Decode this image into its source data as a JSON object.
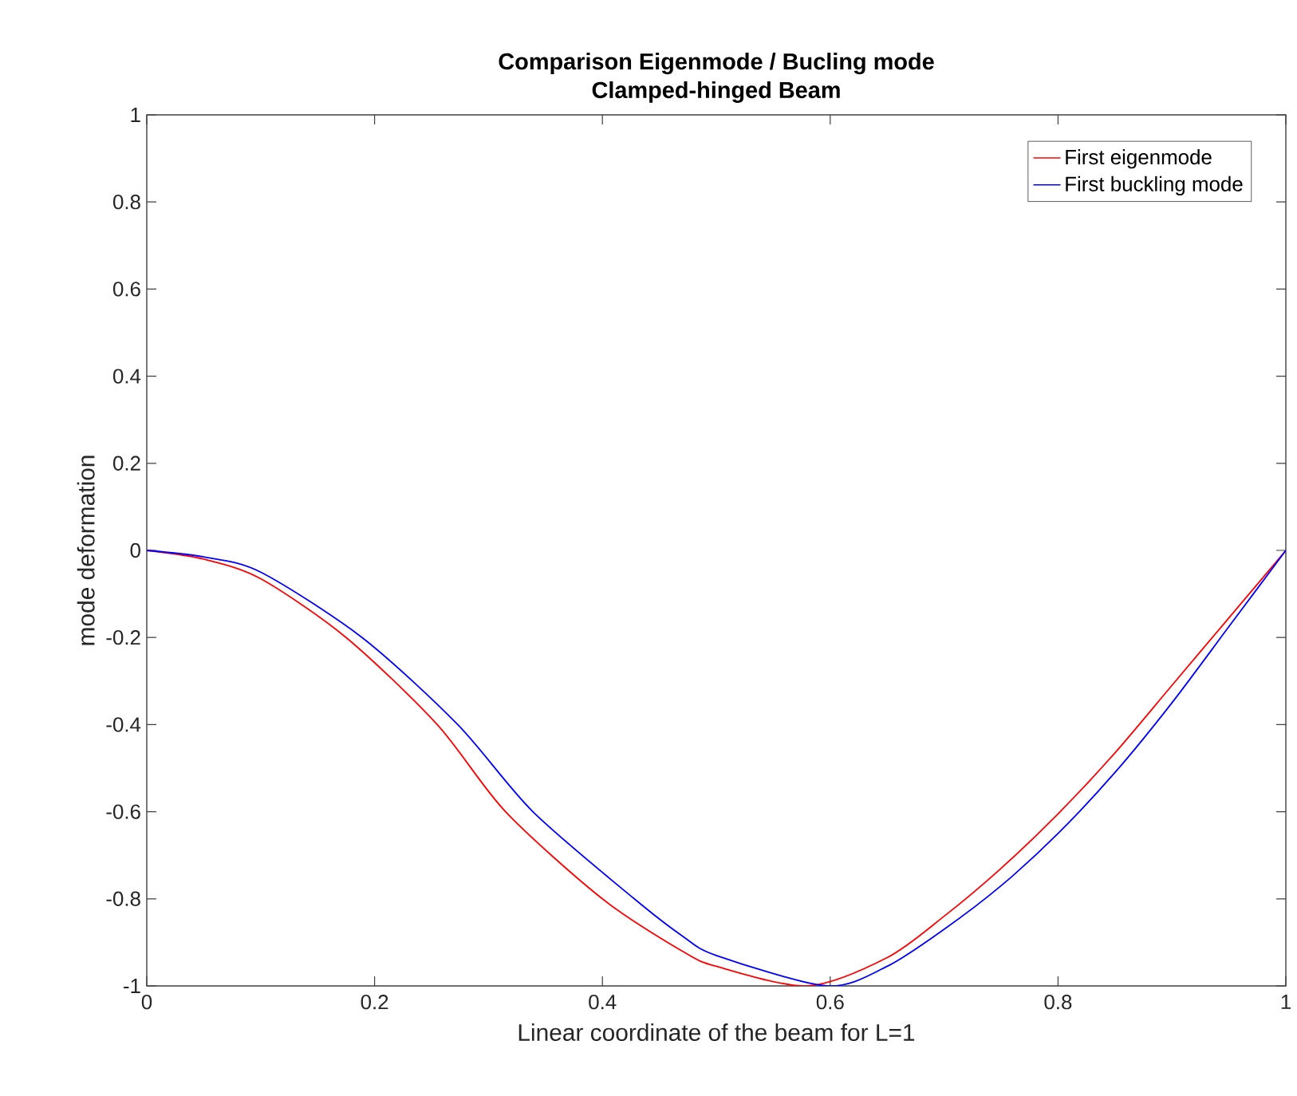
{
  "chart_data": {
    "type": "line",
    "title": "Comparison Eigenmode / Bucling mode",
    "subtitle": "Clamped-hinged Beam",
    "xlabel": "Linear coordinate of the beam for L=1",
    "ylabel": "mode deformation",
    "xlim": [
      0,
      1
    ],
    "ylim": [
      -1,
      1
    ],
    "xticks": [
      0,
      0.2,
      0.4,
      0.6,
      0.8,
      1
    ],
    "yticks": [
      -1,
      -0.8,
      -0.6,
      -0.4,
      -0.2,
      0,
      0.2,
      0.4,
      0.6,
      0.8,
      1
    ],
    "legend": "top right",
    "grid": false,
    "marker": "none",
    "line_style": "solid",
    "series": [
      {
        "name": "First eigenmode",
        "color": "#ff0000",
        "x": [
          0,
          0.05,
          0.1,
          0.175,
          0.255,
          0.315,
          0.4,
          0.47,
          0.5,
          0.58,
          0.65,
          0.7,
          0.75,
          0.8,
          0.85,
          0.9,
          0.95,
          1
        ],
        "values": [
          0,
          -0.02,
          -0.065,
          -0.2,
          -0.4,
          -0.6,
          -0.8,
          -0.92,
          -0.955,
          -1,
          -0.935,
          -0.84,
          -0.73,
          -0.605,
          -0.465,
          -0.31,
          -0.155,
          0
        ]
      },
      {
        "name": "First buckling mode",
        "color": "#0000ff",
        "x": [
          0,
          0.05,
          0.1,
          0.189,
          0.273,
          0.339,
          0.428,
          0.47,
          0.5,
          0.597,
          0.65,
          0.7,
          0.75,
          0.8,
          0.85,
          0.9,
          0.95,
          1
        ],
        "values": [
          0,
          -0.015,
          -0.05,
          -0.2,
          -0.4,
          -0.6,
          -0.8,
          -0.885,
          -0.93,
          -1,
          -0.955,
          -0.87,
          -0.77,
          -0.65,
          -0.51,
          -0.35,
          -0.175,
          0
        ]
      }
    ]
  }
}
